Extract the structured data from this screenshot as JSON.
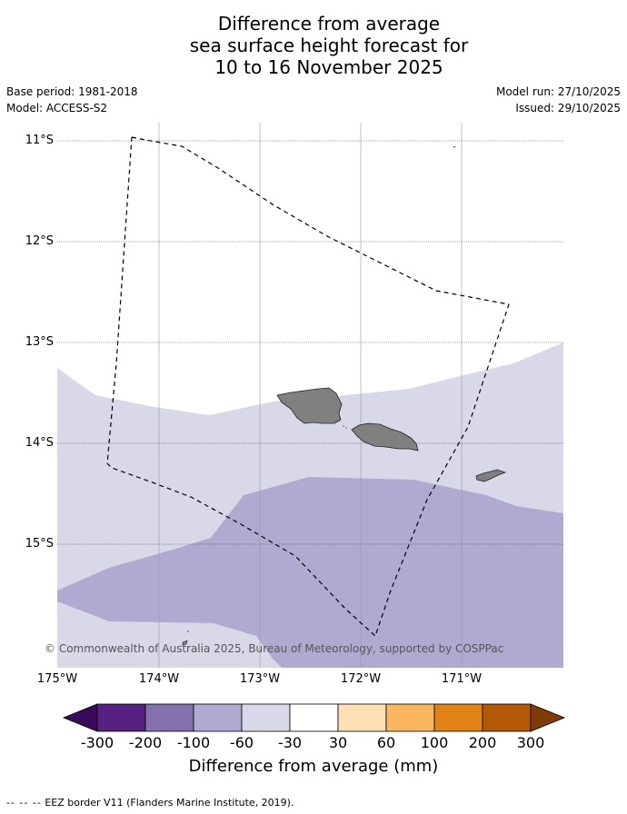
{
  "title": {
    "line1": "Difference from average",
    "line2": "sea surface height forecast for",
    "line3": "10 to 16 November 2025"
  },
  "meta": {
    "base_period": "Base period: 1981-2018",
    "model": "Model: ACCESS-S2",
    "model_run": "Model run: 27/10/2025",
    "issued": "Issued: 29/10/2025"
  },
  "map": {
    "lat_labels": [
      "11°S",
      "12°S",
      "13°S",
      "14°S",
      "15°S"
    ],
    "lon_labels": [
      "175°W",
      "174°W",
      "173°W",
      "172°W",
      "171°W"
    ],
    "copyright": "© Commonwealth of Australia 2025, Bureau of Meteorology, supported by COSPPac",
    "colors": {
      "band_minus30_minus60": "#d8d8e8",
      "band_minus60_minus100": "#b0aad0",
      "land": "#808080",
      "gridline": "#999999",
      "eez": "#000000"
    }
  },
  "colorbar": {
    "ticks": [
      "-300",
      "-200",
      "-100",
      "-60",
      "-30",
      "30",
      "60",
      "100",
      "200",
      "300"
    ],
    "colors": [
      "#3b0a5e",
      "#562183",
      "#8372ad",
      "#b0aad0",
      "#d8d8e8",
      "#ffffff",
      "#fee0b6",
      "#fbb660",
      "#e08214",
      "#b35806",
      "#7f3b08"
    ],
    "label": "Difference from average (mm)"
  },
  "footer": {
    "dashes": "-- -- --",
    "text": "EEZ border V11 (Flanders Marine Institute, 2019)."
  }
}
